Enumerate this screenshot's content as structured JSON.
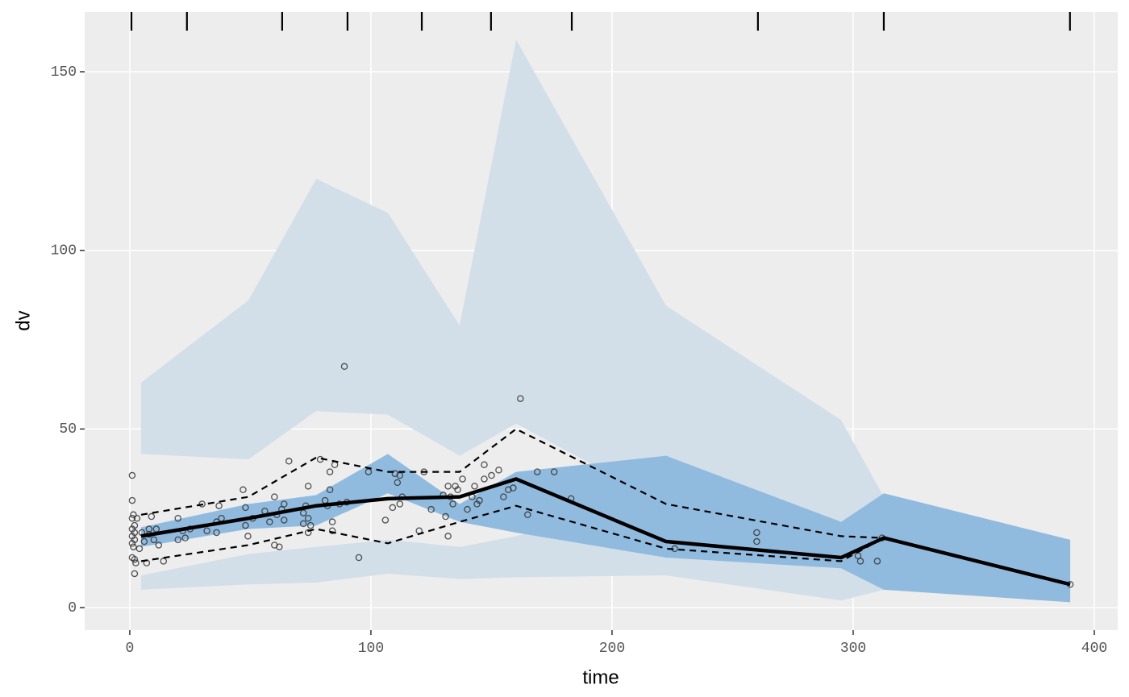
{
  "chart_data": {
    "type": "vpc",
    "x_label": "time",
    "y_label": "dv",
    "xlim": [
      -18.7,
      409.7
    ],
    "ylim": [
      -6.3,
      166.7
    ],
    "xticks": [
      0,
      100,
      200,
      300,
      400
    ],
    "yticks": [
      0,
      50,
      100,
      150
    ],
    "grid": true,
    "background": "#ededed",
    "bin_edges": [
      0.7,
      23.7,
      63.2,
      90.3,
      121.1,
      149.8,
      183.3,
      260.5,
      312.7,
      389.9
    ],
    "bands": [
      {
        "color": "#d2dfe9",
        "x": [
          4.7,
          49.2,
          77.3,
          107,
          136.8,
          160.2,
          222.4,
          295,
          312.7
        ],
        "lower": [
          43,
          41.5,
          55,
          54,
          42.5,
          51.5,
          29,
          24,
          16
        ],
        "upper": [
          63,
          86,
          120,
          110.5,
          79,
          159,
          84.5,
          52.5,
          31
        ]
      },
      {
        "color": "#d2dfe9",
        "x": [
          4.7,
          49.2,
          77.3,
          107,
          136.8,
          160.2,
          222.4,
          295,
          312.7
        ],
        "lower": [
          5,
          6.5,
          7,
          9.5,
          8,
          8.5,
          9,
          2,
          5
        ],
        "upper": [
          9,
          15,
          17,
          19,
          17,
          20,
          32.5,
          14,
          15
        ]
      },
      {
        "color": "#90bbdf",
        "x": [
          4.7,
          49.2,
          77.3,
          107,
          136.8,
          160.2,
          222.4,
          295,
          312.7,
          390
        ],
        "lower": [
          17,
          22,
          23,
          32,
          24,
          21,
          14,
          11,
          5,
          1.5
        ],
        "upper": [
          22.5,
          29,
          31.5,
          43,
          29,
          38,
          42.5,
          24,
          32,
          19
        ]
      }
    ],
    "lines": [
      {
        "dash": false,
        "x": [
          4.7,
          49.2,
          77.3,
          107,
          136.8,
          160.2,
          222.4,
          295,
          312.7,
          390
        ],
        "values": [
          20,
          25,
          28.5,
          30.5,
          31,
          36,
          18.5,
          14,
          19.5,
          6.5
        ]
      },
      {
        "dash": true,
        "x": [
          4.7,
          49.2,
          77.3,
          107,
          136.8,
          160.2,
          222.4,
          295,
          312.7
        ],
        "values": [
          26,
          31,
          42,
          38,
          38,
          50,
          29,
          20,
          19.5
        ]
      },
      {
        "dash": true,
        "x": [
          4.7,
          49.2,
          77.3,
          107,
          136.8,
          160.2,
          222.4,
          295,
          312.7
        ],
        "values": [
          13,
          17.5,
          22,
          18,
          24,
          28.5,
          16.5,
          13,
          19.5
        ]
      }
    ],
    "points": {
      "x": [
        1,
        1,
        1.5,
        1,
        2,
        1,
        2,
        1,
        2,
        1,
        1.5,
        1,
        2,
        2.5,
        2,
        5,
        6,
        7,
        8,
        9,
        10,
        11,
        12,
        14,
        4,
        3,
        8,
        20,
        20,
        22,
        23,
        25,
        30,
        32,
        36,
        36,
        37,
        38,
        47,
        48,
        48,
        49,
        51,
        56,
        58,
        60,
        60,
        61,
        62,
        63,
        64,
        64,
        66,
        72,
        72,
        73,
        74,
        74,
        74,
        75,
        79,
        81,
        82,
        83,
        83,
        84,
        84,
        85,
        87,
        89,
        90,
        95,
        99,
        106,
        109,
        110,
        111,
        112,
        112,
        113,
        120,
        122,
        125,
        130,
        131,
        132,
        132,
        133,
        134,
        135,
        136,
        138,
        140,
        142,
        143,
        144,
        145,
        147,
        147,
        150,
        153,
        155,
        157,
        159,
        162,
        165,
        169,
        176,
        183,
        226,
        260,
        260,
        302,
        303,
        310,
        312,
        390
      ],
      "y": [
        37,
        30,
        26,
        25,
        23,
        22,
        21,
        20,
        19,
        18,
        17,
        14,
        13.5,
        12.5,
        9.5,
        21,
        18.5,
        12.5,
        22,
        25.5,
        19,
        22,
        17.5,
        13,
        16.5,
        25,
        20.5,
        25,
        19,
        21.5,
        19.5,
        22,
        29,
        21.5,
        21,
        24,
        28.5,
        25,
        33,
        28,
        23,
        20,
        25,
        27,
        24,
        31,
        17.5,
        26,
        17,
        27.5,
        29,
        24.5,
        41,
        26.5,
        23.5,
        28.5,
        25,
        34,
        21,
        23,
        41.5,
        30,
        28.5,
        38,
        33,
        24,
        21.5,
        40,
        29,
        67.5,
        29.5,
        14,
        38,
        24.5,
        28,
        37.5,
        35,
        37,
        29,
        31,
        21.5,
        38,
        27.5,
        31.5,
        25.5,
        20,
        34,
        31,
        29,
        34,
        33,
        36,
        27.5,
        31,
        34,
        29,
        30,
        36,
        40,
        37,
        38.5,
        31,
        33,
        33.5,
        58.5,
        26,
        38,
        38,
        30.5,
        16.5,
        21,
        18.5,
        14.5,
        13,
        13,
        19.5,
        6.5
      ]
    }
  }
}
